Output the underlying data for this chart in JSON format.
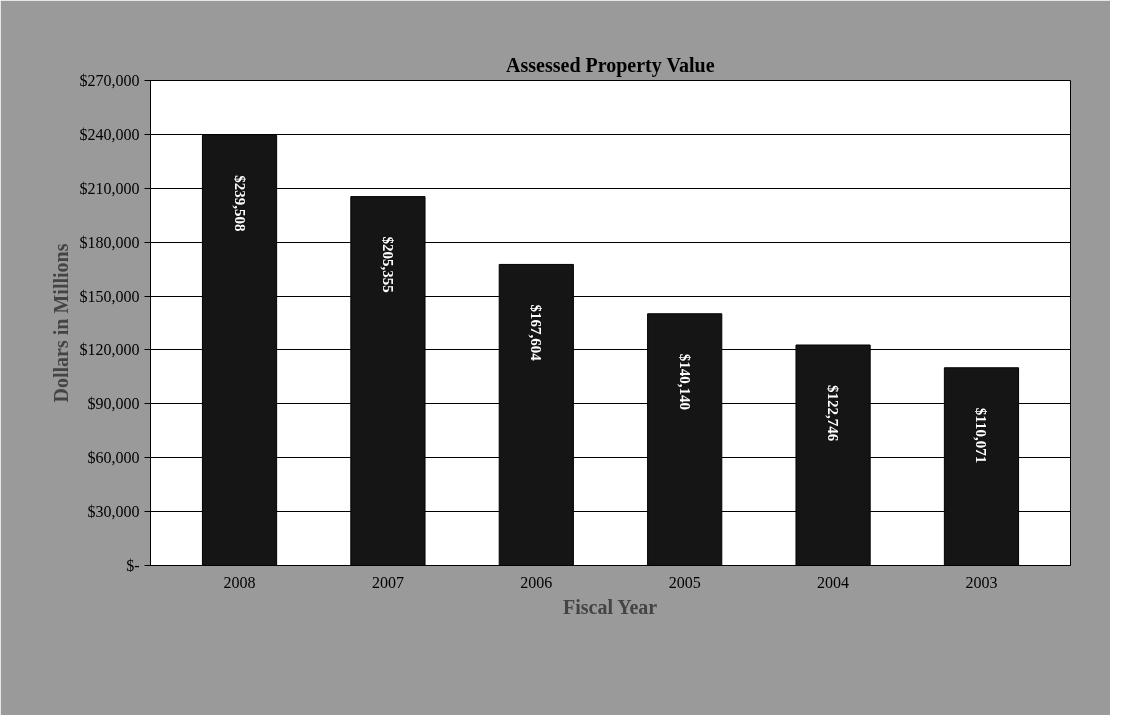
{
  "chart_data": {
    "type": "bar",
    "title": "Assessed Property Value",
    "xlabel": "Fiscal Year",
    "ylabel": "Dollars in Millions",
    "categories": [
      "2008",
      "2007",
      "2006",
      "2005",
      "2004",
      "2003"
    ],
    "values": [
      239508,
      205355,
      167604,
      140140,
      122746,
      110071
    ],
    "value_labels": [
      "$239,508",
      "$205,355",
      "$167,604",
      "$140,140",
      "$122,746",
      "$110,071"
    ],
    "color": "#151515",
    "ylim": [
      0,
      270000
    ],
    "yticks": [
      {
        "value": 0,
        "label": "$-"
      },
      {
        "value": 30000,
        "label": "$30,000"
      },
      {
        "value": 60000,
        "label": "$60,000"
      },
      {
        "value": 90000,
        "label": "$90,000"
      },
      {
        "value": 120000,
        "label": "$120,000"
      },
      {
        "value": 150000,
        "label": "$150,000"
      },
      {
        "value": 180000,
        "label": "$180,000"
      },
      {
        "value": 210000,
        "label": "$210,000"
      },
      {
        "value": 240000,
        "label": "$240,000"
      },
      {
        "value": 270000,
        "label": "$270,000"
      }
    ],
    "grid": "y"
  }
}
